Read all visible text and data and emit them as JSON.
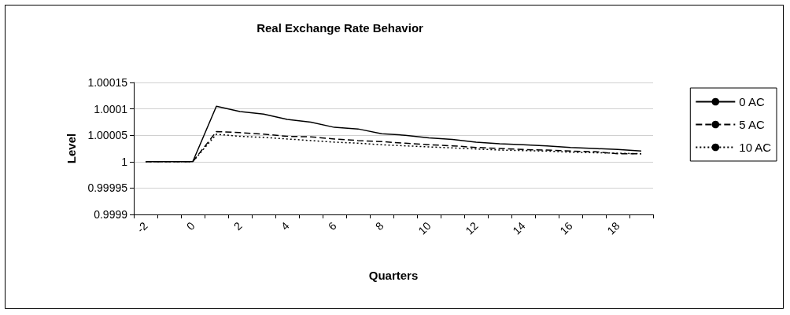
{
  "chart_data": {
    "type": "line",
    "title": "Real Exchange Rate Behavior",
    "xlabel": "Quarters",
    "ylabel": "Level",
    "categories": [
      "-2",
      null,
      "0",
      null,
      "2",
      null,
      "4",
      null,
      "6",
      null,
      "8",
      null,
      "10",
      null,
      "12",
      null,
      "14",
      null,
      "16",
      null,
      "18",
      null
    ],
    "series": [
      {
        "name": "0 AC",
        "color": "#000000",
        "line_style": "solid",
        "values": [
          1,
          1,
          1,
          1.000105,
          1.000095,
          1.00009,
          1.00008,
          1.000075,
          1.000065,
          1.000062,
          1.000053,
          1.00005,
          1.000045,
          1.000042,
          1.000037,
          1.000034,
          1.000032,
          1.00003,
          1.000027,
          1.000025,
          1.000023,
          1.00002
        ]
      },
      {
        "name": "5 AC",
        "color": "#000000",
        "line_style": "dashed",
        "values": [
          1,
          1,
          1,
          1.000057,
          1.000055,
          1.000052,
          1.000048,
          1.000047,
          1.000043,
          1.00004,
          1.000038,
          1.000035,
          1.000032,
          1.00003,
          1.000027,
          1.000025,
          1.000023,
          1.000022,
          1.00002,
          1.000019,
          1.000015,
          1.000015
        ]
      },
      {
        "name": "10 AC",
        "color": "#000000",
        "line_style": "dotted",
        "values": [
          1,
          1,
          1,
          1.000052,
          1.000048,
          1.000046,
          1.000043,
          1.00004,
          1.000037,
          1.000035,
          1.000032,
          1.00003,
          1.000028,
          1.000026,
          1.000024,
          1.000022,
          1.000021,
          1.00002,
          1.000018,
          1.000017,
          1.000016,
          1.000015
        ]
      }
    ],
    "ylim": [
      0.9999,
      1.00015
    ],
    "yticks": [
      0.9999,
      0.99995,
      1,
      1.00005,
      1.0001,
      1.00015
    ],
    "grid": "y",
    "legend": "right",
    "marker": "none"
  }
}
